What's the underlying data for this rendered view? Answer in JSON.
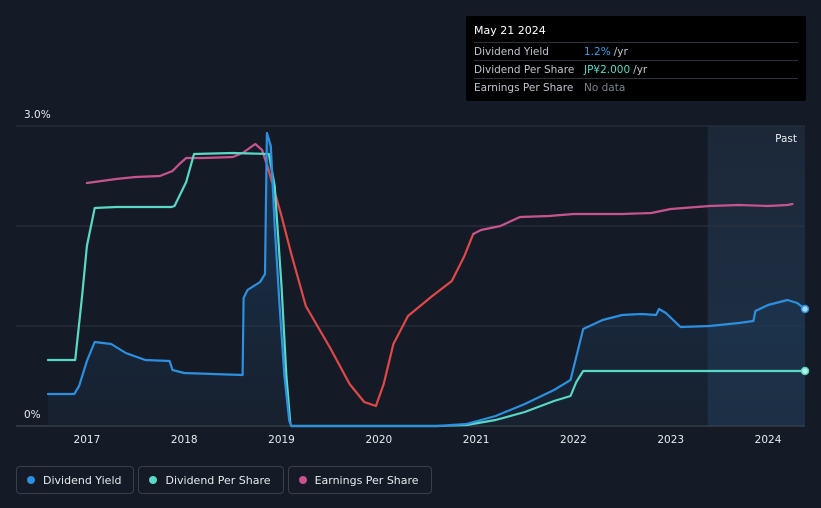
{
  "tooltip": {
    "date": "May 21 2024",
    "rows": [
      {
        "label": "Dividend Yield",
        "value": "1.2%",
        "unit": "/yr"
      },
      {
        "label": "Dividend Per Share",
        "value": "JP¥2.000",
        "unit": "/yr"
      },
      {
        "label": "Earnings Per Share",
        "value": "No data",
        "unit": ""
      }
    ]
  },
  "legend": [
    {
      "label": "Dividend Yield",
      "color": "#2d8fe0"
    },
    {
      "label": "Dividend Per Share",
      "color": "#5ad8c6"
    },
    {
      "label": "Earnings Per Share",
      "color": "#c8548f"
    }
  ],
  "chart_data": {
    "type": "line",
    "y_tick_labels": [
      "3.0%",
      "0%"
    ],
    "ylim": [
      0,
      3.0
    ],
    "xlim": [
      2016.6,
      2024.38
    ],
    "x_ticks": [
      2017,
      2018,
      2019,
      2020,
      2021,
      2022,
      2023,
      2024
    ],
    "x_tick_labels": [
      "2017",
      "2018",
      "2019",
      "2020",
      "2021",
      "2022",
      "2023",
      "2024"
    ],
    "past_region_start": 2023.38,
    "past_label": "Past",
    "colors": {
      "yield": "#2d8fe0",
      "dps": "#5ad8c6",
      "eps_pos": "#c8548f",
      "eps_neg": "#e04848"
    },
    "series": [
      {
        "name": "Dividend Yield",
        "key": "yield",
        "points": [
          [
            2016.6,
            0.32
          ],
          [
            2016.87,
            0.32
          ],
          [
            2016.92,
            0.4
          ],
          [
            2017.0,
            0.65
          ],
          [
            2017.08,
            0.84
          ],
          [
            2017.25,
            0.82
          ],
          [
            2017.4,
            0.73
          ],
          [
            2017.6,
            0.66
          ],
          [
            2017.85,
            0.65
          ],
          [
            2017.88,
            0.56
          ],
          [
            2018.0,
            0.53
          ],
          [
            2018.3,
            0.52
          ],
          [
            2018.6,
            0.51
          ],
          [
            2018.61,
            1.28
          ],
          [
            2018.65,
            1.36
          ],
          [
            2018.78,
            1.44
          ],
          [
            2018.83,
            1.52
          ],
          [
            2018.85,
            2.93
          ],
          [
            2018.89,
            2.8
          ],
          [
            2018.93,
            2.0
          ],
          [
            2018.98,
            1.2
          ],
          [
            2019.03,
            0.5
          ],
          [
            2019.08,
            0.05
          ],
          [
            2019.1,
            0.0
          ],
          [
            2020.6,
            0.0
          ],
          [
            2020.9,
            0.02
          ],
          [
            2021.2,
            0.1
          ],
          [
            2021.5,
            0.22
          ],
          [
            2021.8,
            0.36
          ],
          [
            2021.97,
            0.46
          ],
          [
            2022.1,
            0.97
          ],
          [
            2022.3,
            1.06
          ],
          [
            2022.5,
            1.11
          ],
          [
            2022.7,
            1.12
          ],
          [
            2022.85,
            1.11
          ],
          [
            2022.88,
            1.17
          ],
          [
            2022.95,
            1.13
          ],
          [
            2023.1,
            0.99
          ],
          [
            2023.4,
            1.0
          ],
          [
            2023.7,
            1.03
          ],
          [
            2023.85,
            1.05
          ],
          [
            2023.87,
            1.15
          ],
          [
            2024.0,
            1.21
          ],
          [
            2024.2,
            1.26
          ],
          [
            2024.3,
            1.23
          ],
          [
            2024.38,
            1.17
          ]
        ]
      },
      {
        "name": "Dividend Per Share",
        "key": "dps",
        "points": [
          [
            2016.6,
            0.66
          ],
          [
            2016.88,
            0.66
          ],
          [
            2016.95,
            1.3
          ],
          [
            2017.0,
            1.8
          ],
          [
            2017.08,
            2.18
          ],
          [
            2017.3,
            2.19
          ],
          [
            2017.6,
            2.19
          ],
          [
            2017.87,
            2.19
          ],
          [
            2017.9,
            2.2
          ],
          [
            2018.02,
            2.44
          ],
          [
            2018.1,
            2.72
          ],
          [
            2018.5,
            2.73
          ],
          [
            2018.87,
            2.72
          ],
          [
            2018.93,
            2.4
          ],
          [
            2019.0,
            1.4
          ],
          [
            2019.05,
            0.5
          ],
          [
            2019.09,
            0.03
          ],
          [
            2019.1,
            0.0
          ],
          [
            2020.6,
            0.0
          ],
          [
            2020.9,
            0.01
          ],
          [
            2021.2,
            0.06
          ],
          [
            2021.5,
            0.14
          ],
          [
            2021.8,
            0.25
          ],
          [
            2021.97,
            0.3
          ],
          [
            2022.03,
            0.44
          ],
          [
            2022.1,
            0.55
          ],
          [
            2022.5,
            0.55
          ],
          [
            2023.0,
            0.55
          ],
          [
            2023.5,
            0.55
          ],
          [
            2024.0,
            0.55
          ],
          [
            2024.38,
            0.55
          ]
        ]
      },
      {
        "name": "Earnings Per Share",
        "key": "eps",
        "points": [
          [
            2017.0,
            2.43
          ],
          [
            2017.3,
            2.47
          ],
          [
            2017.5,
            2.49
          ],
          [
            2017.75,
            2.5
          ],
          [
            2017.88,
            2.55
          ],
          [
            2017.95,
            2.62
          ],
          [
            2018.02,
            2.68
          ],
          [
            2018.2,
            2.68
          ],
          [
            2018.5,
            2.69
          ],
          [
            2018.6,
            2.73
          ],
          [
            2018.73,
            2.82
          ],
          [
            2018.8,
            2.76
          ],
          [
            2018.87,
            2.55
          ],
          [
            2019.0,
            2.1
          ],
          [
            2019.1,
            1.72
          ],
          [
            2019.25,
            1.2
          ],
          [
            2019.5,
            0.78
          ],
          [
            2019.7,
            0.42
          ],
          [
            2019.85,
            0.24
          ],
          [
            2019.97,
            0.2
          ],
          [
            2020.05,
            0.42
          ],
          [
            2020.15,
            0.82
          ],
          [
            2020.3,
            1.1
          ],
          [
            2020.55,
            1.3
          ],
          [
            2020.75,
            1.45
          ],
          [
            2020.88,
            1.7
          ],
          [
            2020.97,
            1.92
          ],
          [
            2021.05,
            1.96
          ],
          [
            2021.25,
            2.0
          ],
          [
            2021.45,
            2.09
          ],
          [
            2021.75,
            2.1
          ],
          [
            2022.0,
            2.12
          ],
          [
            2022.5,
            2.12
          ],
          [
            2022.8,
            2.13
          ],
          [
            2023.0,
            2.17
          ],
          [
            2023.4,
            2.2
          ],
          [
            2023.7,
            2.21
          ],
          [
            2024.0,
            2.2
          ],
          [
            2024.2,
            2.21
          ],
          [
            2024.25,
            2.22
          ]
        ]
      }
    ]
  }
}
